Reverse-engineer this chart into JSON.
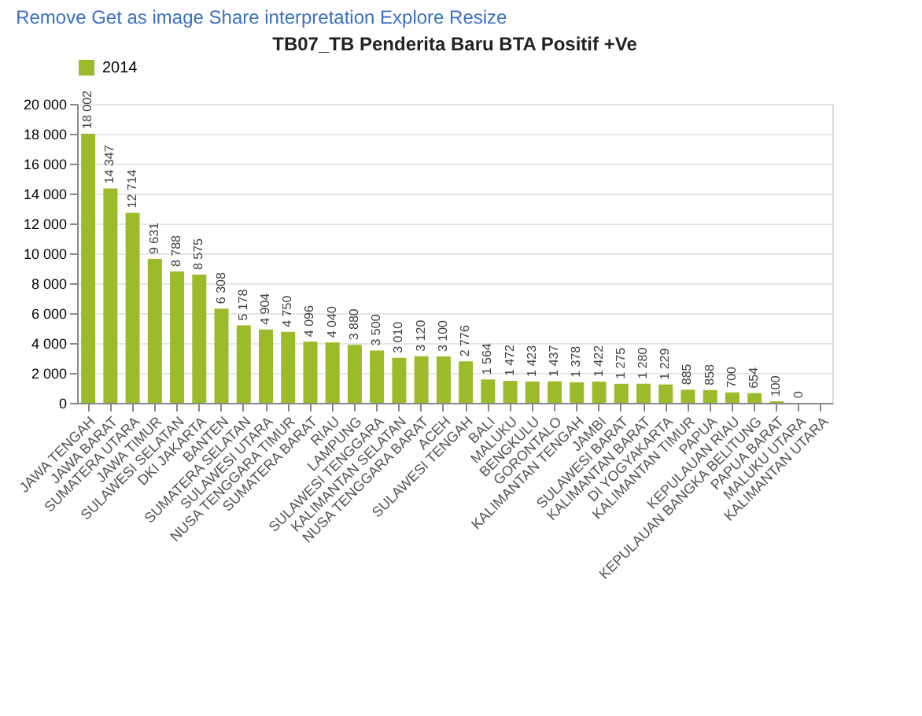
{
  "chart_data": {
    "type": "bar",
    "title": "TB07_TB Penderita Baru BTA Positif +Ve",
    "annotations": [
      "Remove",
      "Get as image",
      "Share interpretation",
      "Explore",
      "Resize"
    ],
    "categories": [
      "JAWA TENGAH",
      "JAWA BARAT",
      "SUMATERA UTARA",
      "JAWA TIMUR",
      "SULAWESI SELATAN",
      "DKI JAKARTA",
      "BANTEN",
      "SUMATERA SELATAN",
      "SULAWESI UTARA",
      "NUSA TENGGARA TIMUR",
      "SUMATERA BARAT",
      "RIAU",
      "LAMPUNG",
      "SULAWESI TENGGARA",
      "KALIMANTAN SELATAN",
      "NUSA TENGGARA BARAT",
      "ACEH",
      "SULAWESI TENGAH",
      "BALI",
      "MALUKU",
      "BENGKULU",
      "GORONTALO",
      "KALIMANTAN TENGAH",
      "JAMBI",
      "SULAWESI BARAT",
      "KALIMANTAN BARAT",
      "DI YOGYAKARTA",
      "KALIMANTAN TIMUR",
      "PAPUA",
      "KEPULAUAN RIAU",
      "KEPULAUAN BANGKA BELITUNG",
      "PAPUA BARAT",
      "MALUKU UTARA",
      "KALIMANTAN UTARA"
    ],
    "series": [
      {
        "name": "2014",
        "color": "#9bbb2a",
        "values": [
          18002,
          14347,
          12714,
          9631,
          8788,
          8575,
          6308,
          5178,
          4904,
          4750,
          4096,
          4040,
          3880,
          3500,
          3010,
          3120,
          3100,
          2776,
          1564,
          1472,
          1423,
          1437,
          1378,
          1422,
          1275,
          1280,
          1229,
          885,
          858,
          700,
          654,
          100,
          0,
          null
        ],
        "value_labels": [
          "18 002",
          "14 347",
          "12 714",
          "9 631",
          "8 788",
          "8 575",
          "6 308",
          "5 178",
          "4 904",
          "4 750",
          "4 096",
          "4 040",
          "3 880",
          "3 500",
          "3 010",
          "3 120",
          "3 100",
          "2 776",
          "1 564",
          "1 472",
          "1 423",
          "1 437",
          "1 378",
          "1 422",
          "1 275",
          "1 280",
          "1 229",
          "885",
          "858",
          "700",
          "654",
          "100",
          "0",
          null
        ]
      }
    ],
    "ylim": [
      0,
      20000
    ],
    "yticks": [
      0,
      {
        "value": 2000,
        "label": "2 000"
      },
      {
        "value": 4000,
        "label": "4 000"
      },
      {
        "value": 6000,
        "label": "6 000"
      },
      {
        "value": 8000,
        "label": "8 000"
      },
      {
        "value": 10000,
        "label": "10 000"
      },
      {
        "value": 12000,
        "label": "12 000"
      },
      {
        "value": 14000,
        "label": "14 000"
      },
      {
        "value": 16000,
        "label": "16 000"
      },
      {
        "value": 18000,
        "label": "18 000"
      },
      {
        "value": 20000,
        "label": "20 000"
      }
    ],
    "grid": "y",
    "legend": "top"
  }
}
